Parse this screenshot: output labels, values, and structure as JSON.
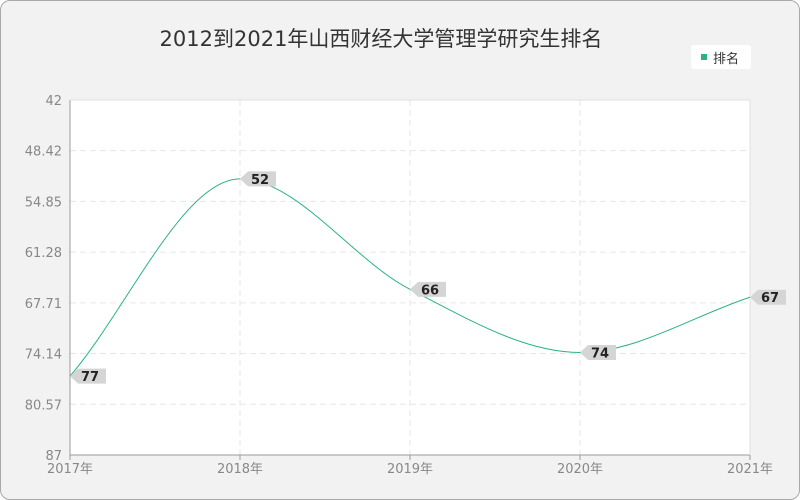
{
  "chart_data": {
    "type": "line",
    "title": "2012到2021年山西财经大学管理学研究生排名",
    "categories": [
      "2017年",
      "2018年",
      "2019年",
      "2020年",
      "2021年"
    ],
    "series": [
      {
        "name": "排名",
        "values": [
          77,
          52,
          66,
          74,
          67
        ],
        "color": "#2bb384"
      }
    ],
    "y_ticks": [
      "42",
      "48.42",
      "54.85",
      "61.28",
      "67.71",
      "74.14",
      "80.57",
      "87"
    ],
    "ylim": [
      42,
      87
    ],
    "y_inverted": true,
    "grid": true,
    "legend": "top-right",
    "xlabel": "",
    "ylabel": ""
  },
  "colors": {
    "background": "#f2f2f2",
    "plot": "#ffffff",
    "series": "#2bb384",
    "label_box": "#d5d5d5"
  }
}
